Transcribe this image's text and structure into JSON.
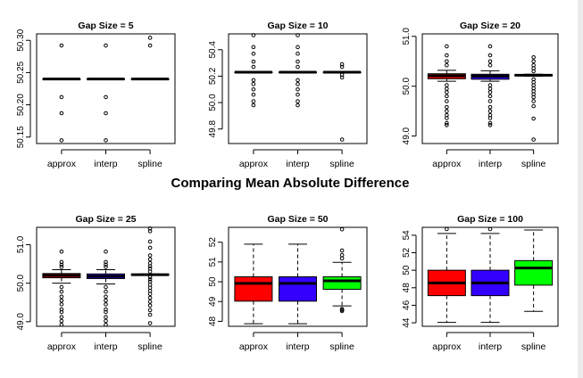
{
  "figure": {
    "main_title": "Comparing Mean Absolute Difference"
  },
  "chart_data": [
    {
      "type": "boxplot",
      "title": "Gap Size = 5",
      "categories": [
        "approx",
        "interp",
        "spline"
      ],
      "yticks": [
        50.15,
        50.2,
        50.25,
        50.3
      ],
      "ytick_labels": [
        "50.15",
        "50.20",
        "50.25",
        "50.30"
      ],
      "ylim": [
        50.14,
        50.31
      ],
      "boxes": [
        {
          "q1": 50.24,
          "median": 50.24,
          "q3": 50.24,
          "whisker_low": 50.24,
          "whisker_high": 50.24,
          "fill": "#ffffff",
          "outliers": [
            50.145,
            50.187,
            50.212,
            50.292
          ]
        },
        {
          "q1": 50.24,
          "median": 50.24,
          "q3": 50.24,
          "whisker_low": 50.24,
          "whisker_high": 50.24,
          "fill": "#ffffff",
          "outliers": [
            50.145,
            50.187,
            50.212,
            50.292
          ]
        },
        {
          "q1": 50.24,
          "median": 50.24,
          "q3": 50.24,
          "whisker_low": 50.24,
          "whisker_high": 50.24,
          "fill": "#ffffff",
          "outliers": [
            50.292,
            50.304
          ]
        }
      ]
    },
    {
      "type": "boxplot",
      "title": "Gap Size = 10",
      "categories": [
        "approx",
        "interp",
        "spline"
      ],
      "yticks": [
        49.8,
        50.0,
        50.2,
        50.4
      ],
      "ytick_labels": [
        "49.8",
        "50.0",
        "50.2",
        "50.4"
      ],
      "ylim": [
        49.69,
        50.52
      ],
      "boxes": [
        {
          "q1": 50.23,
          "median": 50.23,
          "q3": 50.23,
          "whisker_low": 50.23,
          "whisker_high": 50.23,
          "fill": "#ffffff",
          "outliers": [
            49.98,
            50.01,
            50.06,
            50.1,
            50.14,
            50.17,
            50.27,
            50.31,
            50.37,
            50.42,
            50.51
          ]
        },
        {
          "q1": 50.23,
          "median": 50.23,
          "q3": 50.23,
          "whisker_low": 50.23,
          "whisker_high": 50.23,
          "fill": "#ffffff",
          "outliers": [
            49.98,
            50.01,
            50.06,
            50.1,
            50.14,
            50.17,
            50.27,
            50.31,
            50.37,
            50.42,
            50.51
          ]
        },
        {
          "q1": 50.23,
          "median": 50.23,
          "q3": 50.23,
          "whisker_low": 50.23,
          "whisker_high": 50.23,
          "fill": "#ffffff",
          "outliers": [
            49.72,
            50.19,
            50.21,
            50.27,
            50.29
          ]
        }
      ]
    },
    {
      "type": "boxplot",
      "title": "Gap Size = 20",
      "categories": [
        "approx",
        "interp",
        "spline"
      ],
      "yticks": [
        49.0,
        50.0,
        51.0
      ],
      "ytick_labels": [
        "49.0",
        "50.0",
        "51.0"
      ],
      "ylim": [
        48.85,
        51.05
      ],
      "boxes": [
        {
          "q1": 50.15,
          "median": 50.21,
          "q3": 50.25,
          "whisker_low": 50.1,
          "whisker_high": 50.32,
          "fill": "#ff0000",
          "outliers": [
            49.22,
            49.26,
            49.36,
            49.42,
            49.5,
            49.58,
            49.7,
            49.8,
            49.88,
            49.95,
            50.02,
            50.42,
            50.5,
            50.62,
            50.8
          ]
        },
        {
          "q1": 50.14,
          "median": 50.2,
          "q3": 50.24,
          "whisker_low": 50.1,
          "whisker_high": 50.31,
          "fill": "#3300ff",
          "outliers": [
            49.22,
            49.26,
            49.36,
            49.42,
            49.5,
            49.58,
            49.7,
            49.8,
            49.88,
            49.95,
            50.02,
            50.42,
            50.5,
            50.62,
            50.8
          ]
        },
        {
          "q1": 50.21,
          "median": 50.22,
          "q3": 50.23,
          "whisker_low": 50.2,
          "whisker_high": 50.24,
          "fill": "#00ff00",
          "outliers": [
            48.93,
            49.35,
            49.6,
            49.7,
            49.78,
            49.84,
            49.9,
            49.96,
            50.02,
            50.08,
            50.14,
            50.3,
            50.36,
            50.42,
            50.5,
            50.58
          ]
        }
      ]
    },
    {
      "type": "boxplot",
      "title": "Gap Size = 25",
      "categories": [
        "approx",
        "interp",
        "spline"
      ],
      "yticks": [
        49.0,
        50.0,
        51.0
      ],
      "ytick_labels": [
        "49.0",
        "50.0",
        "51.0"
      ],
      "ylim": [
        48.88,
        51.45
      ],
      "boxes": [
        {
          "q1": 50.14,
          "median": 50.2,
          "q3": 50.25,
          "whisker_low": 50.0,
          "whisker_high": 50.35,
          "fill": "#ff0000",
          "outliers": [
            48.92,
            49.02,
            49.12,
            49.25,
            49.32,
            49.45,
            49.55,
            49.65,
            49.78,
            49.9,
            50.42,
            50.48,
            50.55,
            50.82
          ]
        },
        {
          "q1": 50.12,
          "median": 50.18,
          "q3": 50.24,
          "whisker_low": 49.98,
          "whisker_high": 50.35,
          "fill": "#3300ff",
          "outliers": [
            48.92,
            49.02,
            49.12,
            49.25,
            49.32,
            49.45,
            49.55,
            49.65,
            49.78,
            49.9,
            50.42,
            50.48,
            50.55,
            50.82
          ]
        },
        {
          "q1": 50.21,
          "median": 50.22,
          "q3": 50.23,
          "whisker_low": 50.2,
          "whisker_high": 50.24,
          "fill": "#00ff00",
          "outliers": [
            48.96,
            49.18,
            49.3,
            49.42,
            49.52,
            49.62,
            49.72,
            49.8,
            49.88,
            49.96,
            50.04,
            50.1,
            50.16,
            50.3,
            50.38,
            50.44,
            50.52,
            50.62,
            50.72,
            50.92,
            51.08,
            51.35,
            51.42
          ]
        }
      ]
    },
    {
      "type": "boxplot",
      "title": "Gap Size = 50",
      "categories": [
        "approx",
        "interp",
        "spline"
      ],
      "yticks": [
        48,
        49,
        50,
        51,
        52
      ],
      "ytick_labels": [
        "48",
        "49",
        "50",
        "51",
        "52"
      ],
      "ylim": [
        47.75,
        52.75
      ],
      "boxes": [
        {
          "q1": 49.02,
          "median": 49.92,
          "q3": 50.25,
          "whisker_low": 47.88,
          "whisker_high": 51.9,
          "fill": "#ff0000",
          "outliers": []
        },
        {
          "q1": 49.02,
          "median": 49.92,
          "q3": 50.25,
          "whisker_low": 47.88,
          "whisker_high": 51.9,
          "fill": "#3300ff",
          "outliers": []
        },
        {
          "q1": 49.62,
          "median": 50.05,
          "q3": 50.25,
          "whisker_low": 48.78,
          "whisker_high": 50.98,
          "fill": "#00ff00",
          "outliers": [
            48.52,
            48.58,
            48.62,
            51.18,
            51.35,
            51.58,
            52.65
          ]
        }
      ]
    },
    {
      "type": "boxplot",
      "title": "Gap Size = 100",
      "categories": [
        "approx",
        "interp",
        "spline"
      ],
      "yticks": [
        44,
        46,
        48,
        50,
        52,
        54
      ],
      "ytick_labels": [
        "44",
        "46",
        "48",
        "50",
        "52",
        "54"
      ],
      "ylim": [
        43.6,
        54.9
      ],
      "boxes": [
        {
          "q1": 47.1,
          "median": 48.55,
          "q3": 50.0,
          "whisker_low": 44.05,
          "whisker_high": 54.2,
          "fill": "#ff0000",
          "outliers": [
            54.7
          ]
        },
        {
          "q1": 47.1,
          "median": 48.55,
          "q3": 50.0,
          "whisker_low": 44.05,
          "whisker_high": 54.2,
          "fill": "#3300ff",
          "outliers": [
            54.7
          ]
        },
        {
          "q1": 48.3,
          "median": 50.25,
          "q3": 51.1,
          "whisker_low": 45.3,
          "whisker_high": 54.6,
          "fill": "#00ff00",
          "outliers": []
        }
      ]
    }
  ]
}
